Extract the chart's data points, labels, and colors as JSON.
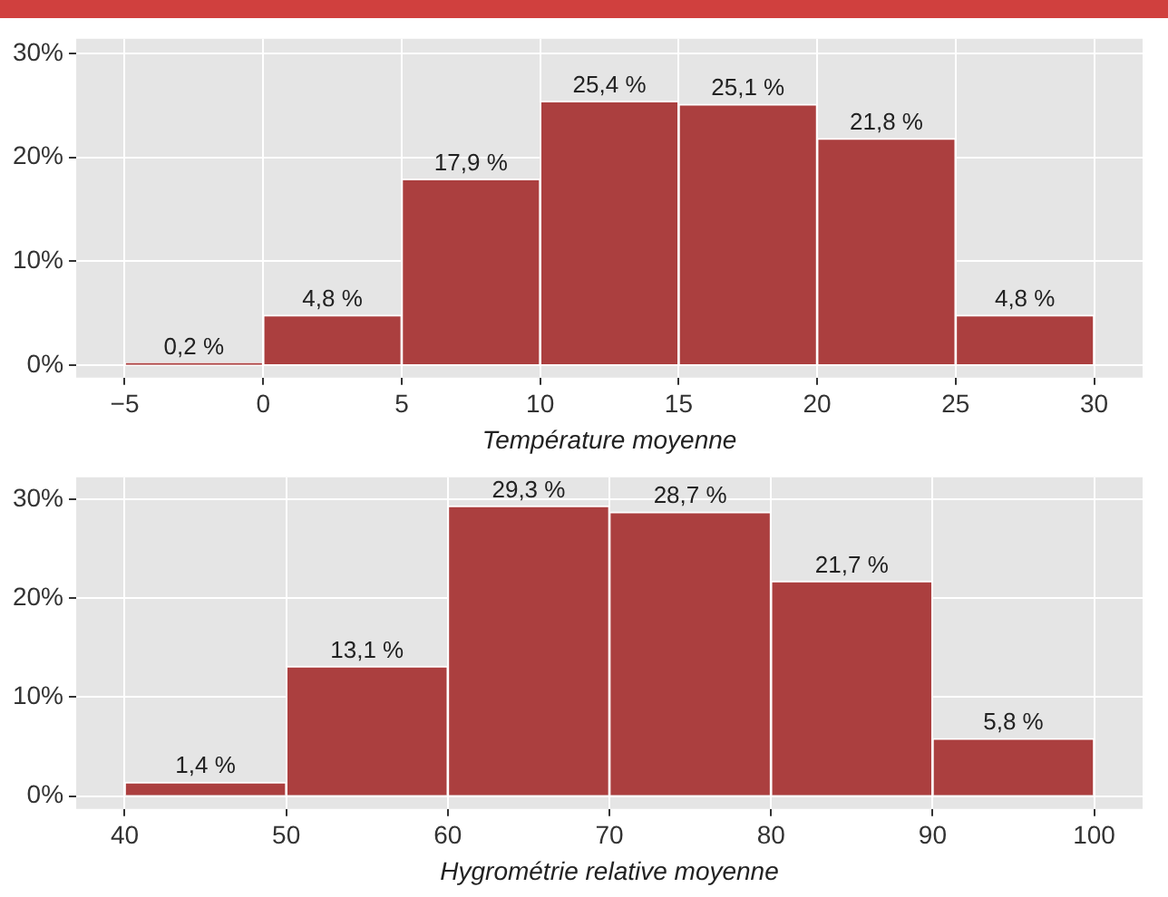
{
  "chart_data": [
    {
      "type": "histogram",
      "xlabel": "Température moyenne",
      "bins": [
        -5,
        0,
        5,
        10,
        15,
        20,
        25,
        30
      ],
      "values": [
        0.2,
        4.8,
        17.9,
        25.4,
        25.1,
        21.8,
        4.8
      ],
      "value_labels": [
        "0,2 %",
        "4,8 %",
        "17,9 %",
        "25,4 %",
        "25,1 %",
        "21,8 %",
        "4,8 %"
      ],
      "color": "#ab3f3f",
      "xlim": [
        -6.75,
        31.75
      ],
      "xticks": [
        {
          "value": -5,
          "label": "−5"
        },
        0,
        5,
        10,
        15,
        20,
        25,
        30
      ],
      "ylim": [
        -1.2,
        31.4
      ],
      "yticks": [
        {
          "value": 0,
          "label": "0%"
        },
        {
          "value": 10,
          "label": "10%"
        },
        {
          "value": 20,
          "label": "20%"
        },
        {
          "value": 30,
          "label": "30%"
        }
      ],
      "grid": true,
      "legend": false
    },
    {
      "type": "histogram",
      "xlabel": "Hygrométrie relative moyenne",
      "bins": [
        40,
        50,
        60,
        70,
        80,
        90,
        100
      ],
      "values": [
        1.4,
        13.1,
        29.3,
        28.7,
        21.7,
        5.8
      ],
      "value_labels": [
        "1,4 %",
        "13,1 %",
        "29,3 %",
        "28,7 %",
        "21,7 %",
        "5,8 %"
      ],
      "color": "#ab3f3f",
      "xlim": [
        37,
        103
      ],
      "xticks": [
        40,
        50,
        60,
        70,
        80,
        90,
        100
      ],
      "ylim": [
        -1.3,
        32.2
      ],
      "yticks": [
        {
          "value": 0,
          "label": "0%"
        },
        {
          "value": 10,
          "label": "10%"
        },
        {
          "value": 20,
          "label": "20%"
        },
        {
          "value": 30,
          "label": "30%"
        }
      ],
      "grid": true,
      "legend": false
    }
  ]
}
